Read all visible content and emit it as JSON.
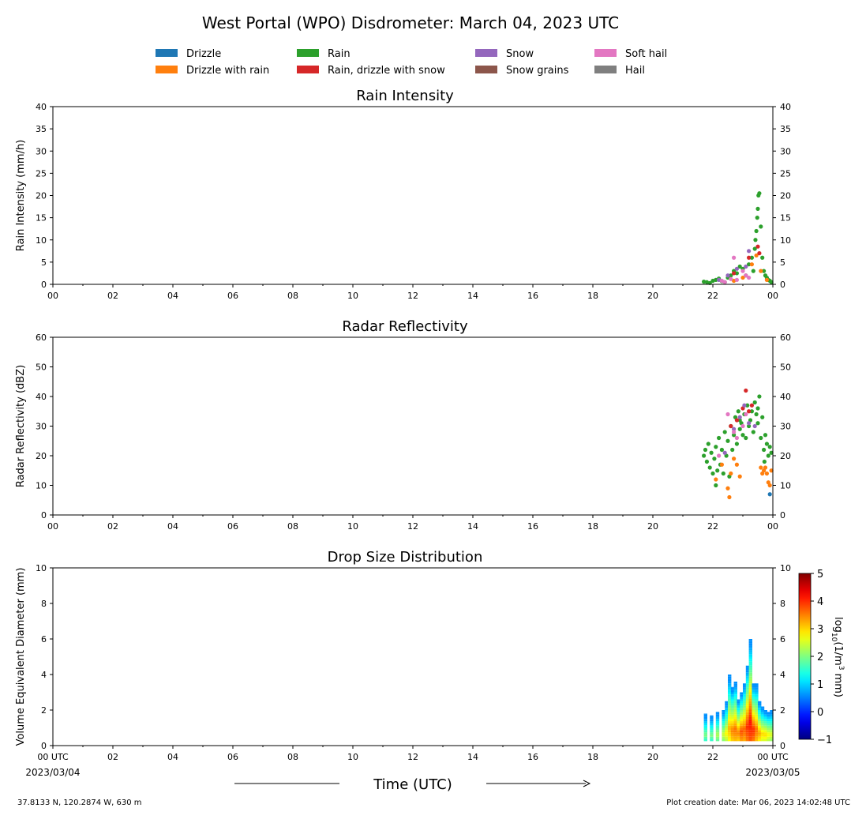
{
  "title": "West Portal (WPO) Disdrometer: March 04, 2023 UTC",
  "legend": [
    {
      "label": "Drizzle",
      "color": "#1f77b4"
    },
    {
      "label": "Drizzle with rain",
      "color": "#ff7f0e"
    },
    {
      "label": "Rain",
      "color": "#2ca02c"
    },
    {
      "label": "Rain, drizzle with snow",
      "color": "#d62728"
    },
    {
      "label": "Snow",
      "color": "#9467bd"
    },
    {
      "label": "Snow grains",
      "color": "#8c564b"
    },
    {
      "label": "Soft hail",
      "color": "#e377c2"
    },
    {
      "label": "Hail",
      "color": "#7f7f7f"
    }
  ],
  "x_ticks": [
    "00",
    "02",
    "04",
    "06",
    "08",
    "10",
    "12",
    "14",
    "16",
    "18",
    "20",
    "22",
    "00"
  ],
  "bottom_x_ticks": [
    "00 UTC",
    "02",
    "04",
    "06",
    "08",
    "10",
    "12",
    "14",
    "16",
    "18",
    "20",
    "22",
    "00 UTC"
  ],
  "date_start": "2023/03/04",
  "date_end": "2023/03/05",
  "xlabel": "Time (UTC)",
  "colorbar": {
    "label_parts": [
      "log",
      "10",
      "(1/m",
      "3",
      " mm)"
    ],
    "ticks": [
      "5",
      "4",
      "3",
      "2",
      "1",
      "0",
      "−1"
    ],
    "range": [
      -1,
      5
    ],
    "colormap": "jet"
  },
  "footer_left": "37.8133 N, 120.2874 W, 630 m",
  "footer_right": "Plot creation date: Mar 06, 2023 14:02:48 UTC",
  "chart_data": [
    {
      "type": "scatter",
      "title": "Rain Intensity",
      "ylabel": "Rain Intensity (mm/h)",
      "xlim": [
        0,
        24
      ],
      "ylim": [
        0,
        40
      ],
      "y_ticks": [
        "0",
        "5",
        "10",
        "15",
        "20",
        "25",
        "30",
        "35",
        "40"
      ],
      "x_unit": "hours UTC",
      "series": [
        {
          "name": "Rain",
          "color": "#2ca02c",
          "x": [
            21.7,
            21.8,
            21.9,
            22.0,
            22.1,
            22.2,
            22.3,
            22.4,
            22.5,
            22.6,
            22.7,
            22.8,
            22.9,
            23.0,
            23.1,
            23.2,
            23.3,
            23.35,
            23.4,
            23.42,
            23.45,
            23.48,
            23.5,
            23.52,
            23.55,
            23.6,
            23.65,
            23.7,
            23.75,
            23.8,
            23.85,
            23.9,
            23.95
          ],
          "y": [
            0.6,
            0.5,
            0.3,
            0.8,
            1.0,
            1.3,
            0.7,
            0.5,
            1.5,
            2.0,
            3.0,
            2.5,
            4.0,
            3.5,
            2.0,
            4.5,
            6.0,
            3.0,
            8.0,
            10.0,
            12.0,
            15.0,
            17.0,
            20.0,
            20.5,
            13.0,
            6.0,
            3.0,
            2.0,
            1.5,
            1.0,
            0.8,
            0.5
          ]
        },
        {
          "name": "Drizzle with rain",
          "color": "#ff7f0e",
          "x": [
            22.7,
            23.0,
            23.3,
            23.45,
            23.6,
            23.8
          ],
          "y": [
            0.8,
            1.5,
            4.5,
            6.5,
            3.0,
            1.0
          ]
        },
        {
          "name": "Rain, drizzle with snow",
          "color": "#d62728",
          "x": [
            22.7,
            23.2,
            23.5,
            23.55
          ],
          "y": [
            2.5,
            6.0,
            8.5,
            7.0
          ]
        },
        {
          "name": "Snow",
          "color": "#9467bd",
          "x": [
            22.2,
            22.5,
            22.8,
            23.1,
            23.2
          ],
          "y": [
            1.0,
            2.0,
            3.5,
            4.0,
            7.5
          ]
        },
        {
          "name": "Soft hail",
          "color": "#e377c2",
          "x": [
            22.3,
            22.4,
            22.6,
            22.7,
            22.8,
            23.0,
            23.1,
            23.2
          ],
          "y": [
            0.8,
            0.5,
            1.2,
            6.0,
            1.0,
            3.0,
            2.0,
            1.5
          ]
        }
      ]
    },
    {
      "type": "scatter",
      "title": "Radar Reflectivity",
      "ylabel": "Radar Reflectivity (dBZ)",
      "xlim": [
        0,
        24
      ],
      "ylim": [
        0,
        60
      ],
      "y_ticks": [
        "0",
        "10",
        "20",
        "30",
        "40",
        "50",
        "60"
      ],
      "x_unit": "hours UTC",
      "series": [
        {
          "name": "Rain",
          "color": "#2ca02c",
          "x": [
            21.7,
            21.75,
            21.8,
            21.85,
            21.9,
            21.95,
            22.0,
            22.05,
            22.1,
            22.15,
            22.2,
            22.25,
            22.3,
            22.35,
            22.4,
            22.45,
            22.5,
            22.55,
            22.6,
            22.65,
            22.7,
            22.75,
            22.8,
            22.85,
            22.9,
            22.95,
            23.0,
            23.05,
            23.1,
            23.15,
            23.2,
            23.25,
            23.3,
            23.35,
            23.4,
            23.45,
            23.5,
            23.55,
            23.6,
            23.65,
            23.7,
            23.75,
            23.8,
            23.85,
            23.9,
            23.95,
            23.72,
            23.5,
            22.9,
            22.1
          ],
          "y": [
            20,
            22,
            18,
            24,
            16,
            21,
            14,
            19,
            23,
            15,
            26,
            17,
            22,
            14,
            28,
            20,
            25,
            13,
            30,
            22,
            27,
            33,
            24,
            35,
            29,
            31,
            27,
            34,
            26,
            37,
            30,
            32,
            35,
            28,
            38,
            34,
            31,
            40,
            26,
            33,
            22,
            27,
            24,
            20,
            23,
            21,
            18,
            36,
            32,
            10
          ]
        },
        {
          "name": "Drizzle with rain",
          "color": "#ff7f0e",
          "x": [
            22.1,
            22.3,
            22.5,
            22.55,
            22.6,
            22.7,
            22.8,
            22.9,
            23.6,
            23.65,
            23.7,
            23.75,
            23.8,
            23.85,
            23.9,
            23.95
          ],
          "y": [
            12,
            17,
            9,
            6,
            14,
            19,
            17,
            13,
            16,
            14,
            15,
            16,
            14,
            11,
            10,
            15
          ]
        },
        {
          "name": "Rain, drizzle with snow",
          "color": "#d62728",
          "x": [
            22.6,
            22.8,
            23.0,
            23.1,
            23.2,
            23.3
          ],
          "y": [
            30,
            32,
            36,
            42,
            35,
            37
          ]
        },
        {
          "name": "Snow",
          "color": "#9467bd",
          "x": [
            22.4,
            22.7,
            22.9,
            23.05,
            23.2,
            23.4
          ],
          "y": [
            21,
            29,
            33,
            37,
            31,
            30
          ]
        },
        {
          "name": "Soft hail",
          "color": "#e377c2",
          "x": [
            22.2,
            22.5,
            22.7,
            22.8,
            23.0,
            23.1
          ],
          "y": [
            20,
            34,
            28,
            26,
            30,
            34
          ]
        },
        {
          "name": "Drizzle",
          "color": "#1f77b4",
          "x": [
            23.9
          ],
          "y": [
            7
          ]
        }
      ]
    },
    {
      "type": "heatmap",
      "title": "Drop Size Distribution",
      "ylabel": "Volume Equivalent Diameter (mm)",
      "xlim": [
        0,
        24
      ],
      "ylim": [
        0,
        10
      ],
      "y_ticks": [
        "0",
        "2",
        "4",
        "6",
        "8",
        "10"
      ],
      "x_unit": "hours UTC",
      "value_unit": "log10(1/m3 mm)",
      "columns": [
        {
          "x": 21.7,
          "top": 1.8,
          "peak": 2.0
        },
        {
          "x": 21.9,
          "top": 1.7,
          "peak": 2.0
        },
        {
          "x": 22.1,
          "top": 1.9,
          "peak": 2.3
        },
        {
          "x": 22.3,
          "top": 2.0,
          "peak": 2.5
        },
        {
          "x": 22.4,
          "top": 2.5,
          "peak": 2.8
        },
        {
          "x": 22.5,
          "top": 4.0,
          "peak": 3.2
        },
        {
          "x": 22.6,
          "top": 3.3,
          "peak": 3.5
        },
        {
          "x": 22.7,
          "top": 3.6,
          "peak": 3.6
        },
        {
          "x": 22.8,
          "top": 2.6,
          "peak": 3.5
        },
        {
          "x": 22.9,
          "top": 3.0,
          "peak": 3.8
        },
        {
          "x": 23.0,
          "top": 3.5,
          "peak": 3.7
        },
        {
          "x": 23.1,
          "top": 4.5,
          "peak": 4.0
        },
        {
          "x": 23.2,
          "top": 6.0,
          "peak": 4.2
        },
        {
          "x": 23.3,
          "top": 3.5,
          "peak": 4.0
        },
        {
          "x": 23.4,
          "top": 3.5,
          "peak": 3.6
        },
        {
          "x": 23.5,
          "top": 2.5,
          "peak": 3.3
        },
        {
          "x": 23.6,
          "top": 2.2,
          "peak": 3.0
        },
        {
          "x": 23.7,
          "top": 2.0,
          "peak": 3.0
        },
        {
          "x": 23.8,
          "top": 1.9,
          "peak": 2.8
        },
        {
          "x": 23.9,
          "top": 2.0,
          "peak": 2.6
        }
      ]
    }
  ]
}
